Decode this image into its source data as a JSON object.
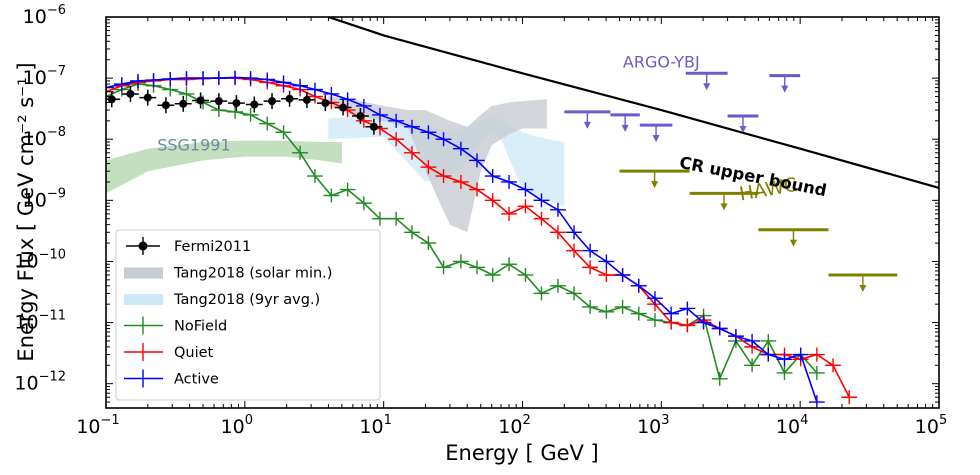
{
  "chart_data": {
    "type": "line",
    "xlabel": "Energy [ GeV ]",
    "ylabel": "Energy Flux [ GeV cm⁻² s⁻¹ ]",
    "xscale": "log",
    "yscale": "log",
    "xlim": [
      0.1,
      100000
    ],
    "ylim": [
      4e-13,
      1e-06
    ],
    "x_ticks": [
      {
        "value": 0.1,
        "base": "10",
        "exp": "−1"
      },
      {
        "value": 1,
        "base": "10",
        "exp": "0"
      },
      {
        "value": 10,
        "base": "10",
        "exp": "1"
      },
      {
        "value": 100,
        "base": "10",
        "exp": "2"
      },
      {
        "value": 1000,
        "base": "10",
        "exp": "3"
      },
      {
        "value": 10000,
        "base": "10",
        "exp": "4"
      },
      {
        "value": 100000,
        "base": "10",
        "exp": "5"
      }
    ],
    "y_ticks": [
      {
        "value": 1e-12,
        "base": "10",
        "exp": "−12"
      },
      {
        "value": 1e-11,
        "base": "10",
        "exp": "−11"
      },
      {
        "value": 1e-10,
        "base": "10",
        "exp": "−10"
      },
      {
        "value": 1e-09,
        "base": "10",
        "exp": "−9"
      },
      {
        "value": 1e-08,
        "base": "10",
        "exp": "−8"
      },
      {
        "value": 1e-07,
        "base": "10",
        "exp": "−7"
      },
      {
        "value": 1e-06,
        "base": "10",
        "exp": "−6"
      }
    ],
    "legend": {
      "position": "lower-left",
      "entries": [
        {
          "label": "Fermi2011",
          "style": "errorbar-marker",
          "color": "#000000"
        },
        {
          "label": "Tang2018 (solar min.)",
          "style": "patch",
          "color": "#c7ccd2"
        },
        {
          "label": "Tang2018 (9yr avg.)",
          "style": "patch",
          "color": "#cfe8f6"
        },
        {
          "label": "NoField",
          "style": "errorbar-line",
          "color": "#228b22"
        },
        {
          "label": "Quiet",
          "style": "errorbar-line",
          "color": "#ff0000"
        },
        {
          "label": "Active",
          "style": "errorbar-line",
          "color": "#0000ff"
        }
      ]
    },
    "annotations": {
      "ssg": {
        "text": "SSG1991",
        "x": 0.43,
        "y": 6.5e-09,
        "color": "#6f8a9b"
      },
      "argo": {
        "text": "ARGO-YBJ",
        "x": 1000,
        "y": 1.5e-07,
        "color": "#6a5acd"
      },
      "hawc": {
        "text": "HAWC",
        "x": 6000,
        "y": 1.2e-09,
        "color": "#808000"
      },
      "cr": {
        "text": "CR upper bound",
        "x": 4500,
        "y": 2e-09,
        "color": "#000000"
      }
    },
    "series": [
      {
        "name": "Fermi2011",
        "color": "#000000",
        "style": "points",
        "x": [
          0.11,
          0.15,
          0.2,
          0.27,
          0.36,
          0.48,
          0.65,
          0.87,
          1.17,
          1.57,
          2.1,
          2.8,
          3.8,
          5.1,
          6.8,
          8.5
        ],
        "y": [
          4.5e-08,
          5.5e-08,
          4.8e-08,
          3.6e-08,
          3.8e-08,
          4.3e-08,
          4.2e-08,
          3.9e-08,
          3.7e-08,
          4.2e-08,
          4.6e-08,
          4.4e-08,
          3.9e-08,
          3.3e-08,
          2.4e-08,
          1.6e-08
        ],
        "yerr_factor": 1.35
      },
      {
        "name": "CR upper bound",
        "color": "#000000",
        "style": "line",
        "x": [
          4,
          10,
          100,
          1000,
          10000,
          100000
        ],
        "y": [
          1e-06,
          5e-07,
          1.2e-07,
          3e-08,
          7e-09,
          1.6e-09
        ]
      },
      {
        "name": "SSG1991",
        "color": "#b5d6b0",
        "style": "band",
        "x": [
          0.1,
          0.2,
          0.5,
          1,
          2,
          3.5,
          5
        ],
        "y_low": [
          1.3e-09,
          3e-09,
          4.5e-09,
          5.2e-09,
          5.2e-09,
          4.5e-09,
          4e-09
        ],
        "y_high": [
          4.5e-09,
          7e-09,
          9e-09,
          9.5e-09,
          9.5e-09,
          9e-09,
          9e-09
        ]
      },
      {
        "name": "Tang2018 (9yr avg.)",
        "color": "#cfe8f6",
        "style": "band",
        "x": [
          4,
          10,
          20,
          35,
          50,
          60,
          70,
          100,
          150,
          200
        ],
        "y_low": [
          1e-08,
          1.1e-08,
          2e-09,
          3e-09,
          9e-09,
          1.3e-08,
          1e-08,
          1.5e-09,
          1e-09,
          8e-10
        ],
        "y_high": [
          2.2e-08,
          2.5e-08,
          1.6e-08,
          1.3e-08,
          2e-08,
          2.5e-08,
          2e-08,
          1.3e-08,
          1e-08,
          9e-09
        ]
      },
      {
        "name": "Tang2018 (solar min.)",
        "color": "#c7ccd2",
        "style": "band",
        "x": [
          4,
          6,
          10,
          15,
          20,
          30,
          40,
          50,
          60,
          80,
          100,
          150
        ],
        "y_low": [
          3.5e-08,
          2.5e-08,
          2e-08,
          1.5e-08,
          3e-09,
          4e-10,
          3e-10,
          3e-09,
          8e-09,
          1.2e-08,
          1.5e-08,
          1.5e-08
        ],
        "y_high": [
          5e-08,
          4.5e-08,
          3.5e-08,
          3e-08,
          3e-08,
          2e-08,
          1.6e-08,
          2.5e-08,
          3.5e-08,
          4e-08,
          4.2e-08,
          4.5e-08
        ]
      },
      {
        "name": "NoField",
        "color": "#228b22",
        "style": "errorline",
        "x": [
          0.1,
          0.13,
          0.17,
          0.22,
          0.29,
          0.38,
          0.5,
          0.65,
          0.85,
          1.1,
          1.45,
          1.9,
          2.5,
          3.2,
          4.2,
          5.5,
          7.2,
          9.4,
          12.3,
          16,
          21,
          27,
          36,
          47,
          61,
          80,
          105,
          137,
          180,
          235,
          307,
          402,
          526,
          688,
          900,
          1177,
          1540,
          2014,
          2634,
          3445,
          4506,
          5894,
          7710,
          10085,
          13190
        ],
        "y": [
          5e-08,
          6.5e-08,
          8e-08,
          7.5e-08,
          6.5e-08,
          5.5e-08,
          4e-08,
          3e-08,
          2.8e-08,
          2.5e-08,
          1.8e-08,
          1.3e-08,
          6e-09,
          2.5e-09,
          1.2e-09,
          1.5e-09,
          9e-10,
          5e-10,
          5e-10,
          3e-10,
          2e-10,
          8e-11,
          1e-10,
          8e-11,
          6e-11,
          9e-11,
          6e-11,
          3e-11,
          4e-11,
          3e-11,
          1.8e-11,
          1.5e-11,
          1.8e-11,
          1.4e-11,
          1.1e-11,
          1e-11,
          9e-12,
          1.3e-11,
          1.2e-12,
          5e-12,
          2e-12,
          5e-12,
          1.5e-12,
          3e-12,
          1.5e-12
        ]
      },
      {
        "name": "Quiet",
        "color": "#ff0000",
        "style": "errorline",
        "x": [
          0.1,
          0.13,
          0.17,
          0.22,
          0.29,
          0.38,
          0.5,
          0.65,
          0.85,
          1.1,
          1.45,
          1.9,
          2.5,
          3.2,
          4.2,
          5.5,
          7.2,
          9.4,
          12.3,
          16,
          21,
          27,
          36,
          47,
          61,
          80,
          105,
          137,
          180,
          235,
          307,
          402,
          526,
          688,
          900,
          1177,
          1540,
          2014,
          2634,
          3445,
          4506,
          5894,
          7710,
          10085,
          13190,
          17250,
          22560
        ],
        "y": [
          6e-08,
          7.5e-08,
          8.5e-08,
          9e-08,
          9.5e-08,
          9.5e-08,
          9.8e-08,
          1e-07,
          1e-07,
          9.5e-08,
          8.5e-08,
          7.5e-08,
          6.5e-08,
          5e-08,
          4e-08,
          3e-08,
          2e-08,
          1.5e-08,
          1e-08,
          6e-09,
          3.5e-09,
          2.5e-09,
          2e-09,
          1.5e-09,
          1e-09,
          6e-10,
          8e-10,
          5e-10,
          3e-10,
          1.5e-10,
          8e-11,
          6e-11,
          6e-11,
          4e-11,
          2e-11,
          1e-11,
          9e-12,
          1.1e-11,
          8e-12,
          6e-12,
          4e-12,
          3e-12,
          3e-12,
          2.5e-12,
          3e-12,
          2e-12,
          6e-13
        ]
      },
      {
        "name": "Active",
        "color": "#0000ff",
        "style": "errorline",
        "x": [
          0.1,
          0.13,
          0.17,
          0.22,
          0.29,
          0.38,
          0.5,
          0.65,
          0.85,
          1.1,
          1.45,
          1.9,
          2.5,
          3.2,
          4.2,
          5.5,
          7.2,
          9.4,
          12.3,
          16,
          21,
          27,
          36,
          47,
          61,
          80,
          105,
          137,
          180,
          235,
          307,
          402,
          526,
          688,
          900,
          1177,
          1540,
          2014,
          2634,
          3445,
          4506,
          5894,
          7710,
          10085,
          13190
        ],
        "y": [
          7e-08,
          8e-08,
          9e-08,
          9.3e-08,
          9.7e-08,
          1e-07,
          1e-07,
          1e-07,
          1.02e-07,
          1e-07,
          9.5e-08,
          8.5e-08,
          7.5e-08,
          6.5e-08,
          5.5e-08,
          4.5e-08,
          3.5e-08,
          2.5e-08,
          2e-08,
          1.6e-08,
          1.3e-08,
          1e-08,
          7e-09,
          4.5e-09,
          2.5e-09,
          2e-09,
          1.5e-09,
          1e-09,
          7e-10,
          3e-10,
          1.5e-10,
          1e-10,
          6e-11,
          4e-11,
          2.5e-11,
          1.4e-11,
          1.7e-11,
          1e-11,
          8e-12,
          6e-12,
          5e-12,
          3e-12,
          2.5e-12,
          3e-12,
          5e-13
        ]
      }
    ],
    "upper_limits": [
      {
        "name": "ARGO-YBJ",
        "color": "#6a5acd",
        "segments": [
          [
            200,
            430,
            2.8e-08
          ],
          [
            430,
            700,
            2.5e-08
          ],
          [
            700,
            1200,
            1.7e-08
          ],
          [
            1500,
            3000,
            1.2e-07
          ],
          [
            3000,
            5000,
            2.4e-08
          ],
          [
            6000,
            10000,
            1.1e-07
          ]
        ]
      },
      {
        "name": "HAWC",
        "color": "#808000",
        "segments": [
          [
            500,
            1600,
            3e-09
          ],
          [
            1600,
            5000,
            1.3e-09
          ],
          [
            5000,
            16000,
            3.3e-10
          ],
          [
            16000,
            50000,
            6e-11
          ]
        ]
      }
    ]
  }
}
